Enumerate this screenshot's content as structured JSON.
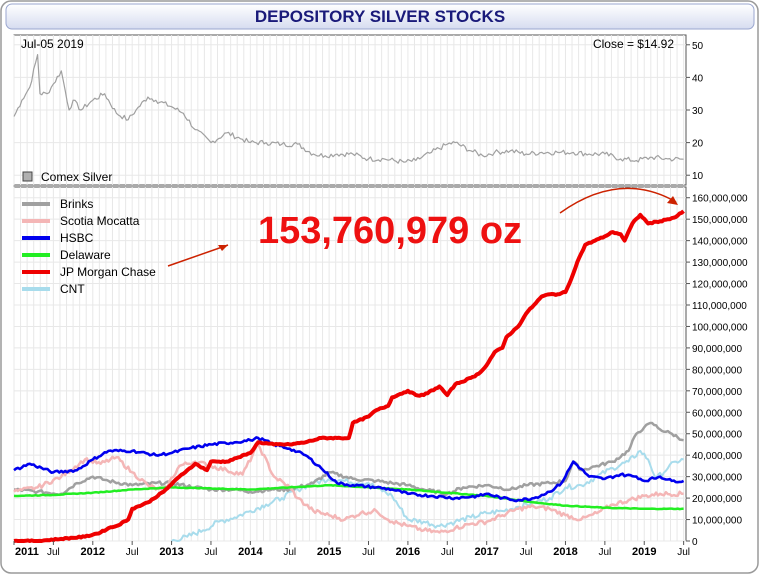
{
  "chart_data": [
    {
      "type": "line",
      "panel": "top",
      "title": "DEPOSITORY SILVER STOCKS",
      "date_label": "Jul-05  2019",
      "close_label": "Close = $14.92",
      "legend": "Comex Silver",
      "ylim": [
        7,
        53
      ],
      "yticks": [
        10,
        20,
        30,
        40,
        50
      ],
      "series": [
        {
          "name": "Comex Silver",
          "color": "#a0a0a0",
          "t": [
            2011.0,
            2011.1,
            2011.2,
            2011.3,
            2011.33,
            2011.42,
            2011.5,
            2011.6,
            2011.7,
            2011.75,
            2011.85,
            2012.0,
            2012.15,
            2012.3,
            2012.45,
            2012.55,
            2012.7,
            2012.8,
            2013.0,
            2013.15,
            2013.3,
            2013.5,
            2013.7,
            2013.9,
            2014.0,
            2014.2,
            2014.4,
            2014.6,
            2014.8,
            2014.95,
            2015.1,
            2015.3,
            2015.5,
            2015.7,
            2015.95,
            2016.1,
            2016.3,
            2016.5,
            2016.6,
            2016.8,
            2016.95,
            2017.1,
            2017.3,
            2017.5,
            2017.7,
            2017.9,
            2018.1,
            2018.3,
            2018.5,
            2018.7,
            2018.9,
            2019.1,
            2019.3,
            2019.5
          ],
          "v": [
            28,
            33,
            37,
            47,
            35,
            35,
            38,
            42,
            30,
            33,
            30,
            33,
            35,
            29,
            27,
            30,
            34,
            33,
            31,
            29,
            24,
            20,
            23,
            21,
            20,
            20,
            19.5,
            19.5,
            16.5,
            16,
            16.5,
            16.5,
            15,
            15,
            14,
            14.5,
            17,
            19.5,
            20,
            17.5,
            16,
            17,
            17.5,
            16.5,
            17,
            17,
            17,
            16.5,
            16.5,
            15,
            14.5,
            15.5,
            15,
            14.9
          ]
        }
      ]
    },
    {
      "type": "line",
      "panel": "bottom",
      "callout": "153,760,979 oz",
      "ylim": [
        0,
        165000000
      ],
      "yticks": [
        0,
        10000000,
        20000000,
        30000000,
        40000000,
        50000000,
        60000000,
        70000000,
        80000000,
        90000000,
        100000000,
        110000000,
        120000000,
        130000000,
        140000000,
        150000000,
        160000000
      ],
      "ytick_labels": [
        "0",
        "10,000,000",
        "20,000,000",
        "30,000,000",
        "40,000,000",
        "50,000,000",
        "60,000,000",
        "70,000,000",
        "80,000,000",
        "90,000,000",
        "100,000,000",
        "110,000,000",
        "120,000,000",
        "130,000,000",
        "140,000,000",
        "150,000,000",
        "160,000,000"
      ],
      "x_ticks": [
        {
          "t": 2011.0,
          "label": "2011",
          "bold": true
        },
        {
          "t": 2011.5,
          "label": "Jul",
          "bold": false
        },
        {
          "t": 2012.0,
          "label": "2012",
          "bold": true
        },
        {
          "t": 2012.5,
          "label": "Jul",
          "bold": false
        },
        {
          "t": 2013.0,
          "label": "2013",
          "bold": true
        },
        {
          "t": 2013.5,
          "label": "Jul",
          "bold": false
        },
        {
          "t": 2014.0,
          "label": "2014",
          "bold": true
        },
        {
          "t": 2014.5,
          "label": "Jul",
          "bold": false
        },
        {
          "t": 2015.0,
          "label": "2015",
          "bold": true
        },
        {
          "t": 2015.5,
          "label": "Jul",
          "bold": false
        },
        {
          "t": 2016.0,
          "label": "2016",
          "bold": true
        },
        {
          "t": 2016.5,
          "label": "Jul",
          "bold": false
        },
        {
          "t": 2017.0,
          "label": "2017",
          "bold": true
        },
        {
          "t": 2017.5,
          "label": "Jul",
          "bold": false
        },
        {
          "t": 2018.0,
          "label": "2018",
          "bold": true
        },
        {
          "t": 2018.5,
          "label": "Jul",
          "bold": false
        },
        {
          "t": 2019.0,
          "label": "2019",
          "bold": true
        },
        {
          "t": 2019.5,
          "label": "Jul",
          "bold": false
        }
      ],
      "series": [
        {
          "name": "Brinks",
          "color": "#a0a0a0",
          "t": [
            2011.0,
            2011.3,
            2011.6,
            2011.8,
            2012.0,
            2012.2,
            2012.5,
            2012.8,
            2013.0,
            2013.3,
            2013.5,
            2013.8,
            2014.0,
            2014.3,
            2014.5,
            2014.8,
            2015.0,
            2015.3,
            2015.6,
            2015.8,
            2016.0,
            2016.2,
            2016.5,
            2016.7,
            2017.0,
            2017.3,
            2017.5,
            2017.8,
            2018.0,
            2018.1,
            2018.2,
            2018.4,
            2018.6,
            2018.8,
            2018.9,
            2019.0,
            2019.1,
            2019.2,
            2019.35,
            2019.5
          ],
          "v": [
            24000000,
            23000000,
            22000000,
            27000000,
            30000000,
            28000000,
            26000000,
            27000000,
            27000000,
            25000000,
            24000000,
            24000000,
            23000000,
            24000000,
            24000000,
            27000000,
            32000000,
            29000000,
            28000000,
            27000000,
            26000000,
            24000000,
            22000000,
            25000000,
            26000000,
            24000000,
            26000000,
            27000000,
            28000000,
            37000000,
            33000000,
            35000000,
            37000000,
            42000000,
            50000000,
            53000000,
            55000000,
            52000000,
            50000000,
            47000000
          ]
        },
        {
          "name": "Scotia Mocatta",
          "color": "#f4b6b6",
          "t": [
            2011.0,
            2011.3,
            2011.6,
            2011.9,
            2012.1,
            2012.3,
            2012.5,
            2012.7,
            2012.9,
            2013.1,
            2013.3,
            2013.5,
            2013.7,
            2013.9,
            2014.1,
            2014.3,
            2014.5,
            2014.6,
            2014.8,
            2015.0,
            2015.2,
            2015.4,
            2015.6,
            2015.8,
            2016.0,
            2016.2,
            2016.4,
            2016.6,
            2016.8,
            2017.0,
            2017.2,
            2017.4,
            2017.6,
            2017.8,
            2018.0,
            2018.2,
            2018.4,
            2018.6,
            2018.8,
            2019.0,
            2019.2,
            2019.5
          ],
          "v": [
            23000000,
            25000000,
            30000000,
            38000000,
            36000000,
            39000000,
            32000000,
            26000000,
            23000000,
            35000000,
            37000000,
            35000000,
            33000000,
            31000000,
            45000000,
            30000000,
            25000000,
            20000000,
            14000000,
            12000000,
            10000000,
            13000000,
            14000000,
            9000000,
            7000000,
            5000000,
            4000000,
            6000000,
            8000000,
            9000000,
            12000000,
            15000000,
            16000000,
            15000000,
            12000000,
            10000000,
            13000000,
            17000000,
            19000000,
            21000000,
            22000000,
            22000000
          ]
        },
        {
          "name": "HSBC",
          "color": "#0000ee",
          "t": [
            2011.0,
            2011.2,
            2011.5,
            2011.8,
            2012.0,
            2012.2,
            2012.5,
            2012.8,
            2013.0,
            2013.2,
            2013.5,
            2013.8,
            2014.0,
            2014.1,
            2014.3,
            2014.5,
            2014.7,
            2014.9,
            2015.1,
            2015.3,
            2015.6,
            2015.8,
            2016.0,
            2016.3,
            2016.6,
            2016.9,
            2017.0,
            2017.2,
            2017.4,
            2017.6,
            2017.8,
            2017.95,
            2018.1,
            2018.3,
            2018.5,
            2018.7,
            2018.9,
            2019.0,
            2019.2,
            2019.35,
            2019.5
          ],
          "v": [
            33000000,
            36000000,
            32000000,
            33000000,
            38000000,
            42000000,
            42000000,
            40000000,
            41000000,
            43000000,
            45000000,
            46000000,
            47000000,
            48000000,
            45000000,
            43000000,
            40000000,
            34000000,
            27000000,
            26000000,
            25000000,
            24000000,
            22000000,
            21000000,
            20000000,
            21000000,
            22000000,
            20000000,
            19000000,
            20000000,
            23000000,
            27000000,
            37000000,
            30000000,
            29000000,
            31000000,
            30000000,
            28000000,
            30000000,
            28000000,
            28000000
          ]
        },
        {
          "name": "Delaware",
          "color": "#22ee22",
          "t": [
            2011.0,
            2011.5,
            2012.0,
            2012.5,
            2013.0,
            2013.5,
            2014.0,
            2014.5,
            2015.0,
            2015.5,
            2016.0,
            2016.5,
            2017.0,
            2017.3,
            2017.6,
            2018.0,
            2018.5,
            2019.0,
            2019.5
          ],
          "v": [
            21000000,
            21500000,
            22500000,
            24000000,
            25000000,
            24500000,
            24000000,
            25000000,
            26000000,
            25000000,
            24000000,
            22500000,
            21000000,
            19500000,
            18000000,
            16500000,
            15500000,
            15000000,
            15000000
          ]
        },
        {
          "name": "JP Morgan Chase",
          "color": "#ee0000",
          "t": [
            2011.0,
            2011.3,
            2011.6,
            2011.9,
            2012.1,
            2012.2,
            2012.3,
            2012.45,
            2012.5,
            2012.7,
            2012.9,
            2013.1,
            2013.2,
            2013.3,
            2013.45,
            2013.5,
            2013.7,
            2013.85,
            2014.0,
            2014.1,
            2014.3,
            2014.5,
            2014.7,
            2014.9,
            2015.1,
            2015.25,
            2015.3,
            2015.5,
            2015.6,
            2015.75,
            2015.8,
            2016.0,
            2016.1,
            2016.2,
            2016.4,
            2016.5,
            2016.6,
            2016.8,
            2016.9,
            2017.0,
            2017.1,
            2017.2,
            2017.25,
            2017.4,
            2017.5,
            2017.6,
            2017.7,
            2017.8,
            2017.9,
            2018.0,
            2018.05,
            2018.15,
            2018.25,
            2018.5,
            2018.6,
            2018.7,
            2018.75,
            2018.85,
            2018.95,
            2019.05,
            2019.2,
            2019.3,
            2019.4,
            2019.5
          ],
          "v": [
            0,
            0,
            1000000,
            2000000,
            4000000,
            6000000,
            7000000,
            10000000,
            15000000,
            18000000,
            23000000,
            30000000,
            33000000,
            36000000,
            33000000,
            37000000,
            37000000,
            39000000,
            41000000,
            46000000,
            45000000,
            45000000,
            46000000,
            48000000,
            48000000,
            48000000,
            55000000,
            58000000,
            61000000,
            63000000,
            67000000,
            70000000,
            68000000,
            68000000,
            72000000,
            68000000,
            73000000,
            76000000,
            78000000,
            82000000,
            88000000,
            90000000,
            95000000,
            100000000,
            106000000,
            110000000,
            114000000,
            115000000,
            115000000,
            116000000,
            120000000,
            130000000,
            138000000,
            142000000,
            144000000,
            143000000,
            140000000,
            148000000,
            152000000,
            148000000,
            149000000,
            150000000,
            151000000,
            153760979
          ]
        },
        {
          "name": "CNT",
          "color": "#a8dcec",
          "t": [
            2013.0,
            2013.2,
            2013.4,
            2013.6,
            2013.8,
            2014.0,
            2014.2,
            2014.4,
            2014.6,
            2014.8,
            2015.0,
            2015.2,
            2015.5,
            2015.8,
            2016.0,
            2016.2,
            2016.4,
            2016.6,
            2016.8,
            2017.0,
            2017.2,
            2017.4,
            2017.6,
            2017.8,
            2018.0,
            2018.2,
            2018.4,
            2018.6,
            2018.8,
            2018.95,
            2019.05,
            2019.15,
            2019.3,
            2019.4,
            2019.5
          ],
          "v": [
            0,
            2000000,
            5000000,
            9000000,
            11000000,
            14000000,
            17000000,
            20000000,
            24000000,
            27000000,
            29000000,
            28000000,
            27000000,
            21000000,
            10000000,
            9000000,
            7000000,
            9000000,
            11000000,
            13000000,
            14000000,
            16000000,
            18000000,
            20000000,
            25000000,
            26000000,
            30000000,
            34000000,
            37000000,
            42000000,
            38000000,
            29000000,
            34000000,
            37000000,
            38000000
          ]
        }
      ]
    }
  ]
}
